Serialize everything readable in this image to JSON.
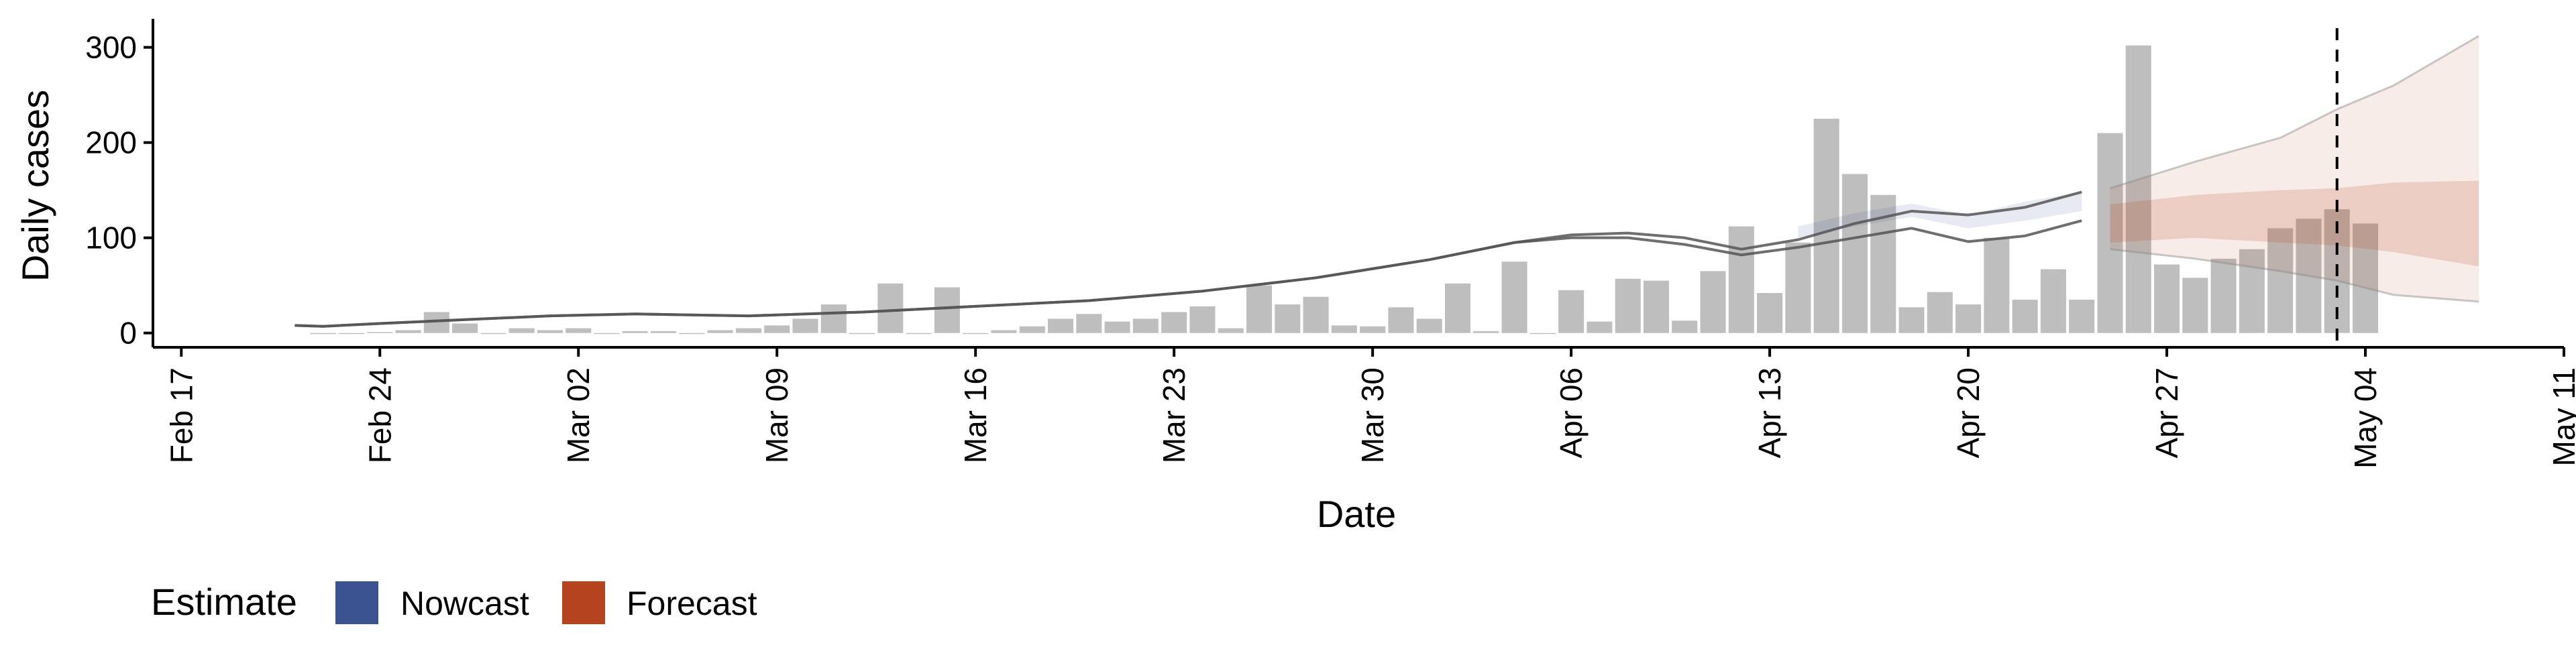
{
  "chart_data": {
    "type": "bar",
    "xlabel": "Date",
    "ylabel": "Daily cases",
    "ylim": [
      -15,
      330
    ],
    "xlim": [
      "2020-02-16",
      "2020-05-11"
    ],
    "y_ticks": [
      0,
      100,
      200,
      300
    ],
    "x_ticks": [
      {
        "date": "2020-02-17",
        "label": "Feb 17"
      },
      {
        "date": "2020-02-24",
        "label": "Feb 24"
      },
      {
        "date": "2020-03-02",
        "label": "Mar 02"
      },
      {
        "date": "2020-03-09",
        "label": "Mar 09"
      },
      {
        "date": "2020-03-16",
        "label": "Mar 16"
      },
      {
        "date": "2020-03-23",
        "label": "Mar 23"
      },
      {
        "date": "2020-03-30",
        "label": "Mar 30"
      },
      {
        "date": "2020-04-06",
        "label": "Apr 06"
      },
      {
        "date": "2020-04-13",
        "label": "Apr 13"
      },
      {
        "date": "2020-04-20",
        "label": "Apr 20"
      },
      {
        "date": "2020-04-27",
        "label": "Apr 27"
      },
      {
        "date": "2020-05-04",
        "label": "May 04"
      },
      {
        "date": "2020-05-11",
        "label": "May 11"
      }
    ],
    "reported_cases": {
      "start_date": "2020-02-22",
      "values": [
        0,
        0,
        1,
        3,
        22,
        10,
        0,
        5,
        3,
        5,
        0,
        2,
        2,
        0,
        3,
        5,
        8,
        15,
        30,
        0,
        52,
        0,
        48,
        0,
        3,
        7,
        15,
        20,
        12,
        15,
        22,
        28,
        5,
        50,
        30,
        38,
        8,
        7,
        27,
        15,
        52,
        2,
        75,
        0,
        45,
        12,
        57,
        55,
        13,
        65,
        112,
        42,
        95,
        225,
        167,
        145,
        27,
        43,
        30,
        100,
        35,
        67,
        35,
        210,
        302,
        72,
        58,
        78,
        88,
        110,
        120,
        130,
        115
      ]
    },
    "estimate_lines": [
      {
        "x": [
          "2020-02-21",
          "2020-02-22",
          "2020-02-24",
          "2020-02-27",
          "2020-03-01",
          "2020-03-04",
          "2020-03-08",
          "2020-03-12",
          "2020-03-16",
          "2020-03-20",
          "2020-03-24",
          "2020-03-28",
          "2020-04-01",
          "2020-04-04",
          "2020-04-06",
          "2020-04-08",
          "2020-04-10",
          "2020-04-12",
          "2020-04-14",
          "2020-04-16",
          "2020-04-18",
          "2020-04-20",
          "2020-04-22",
          "2020-04-24"
        ],
        "y": [
          8,
          7,
          10,
          14,
          18,
          20,
          18,
          22,
          28,
          34,
          44,
          58,
          77,
          95,
          103,
          105,
          100,
          88,
          98,
          115,
          128,
          124,
          132,
          148
        ]
      },
      {
        "x": [
          "2020-02-21",
          "2020-02-22",
          "2020-02-24",
          "2020-02-27",
          "2020-03-01",
          "2020-03-04",
          "2020-03-08",
          "2020-03-12",
          "2020-03-16",
          "2020-03-20",
          "2020-03-24",
          "2020-03-28",
          "2020-04-01",
          "2020-04-04",
          "2020-04-06",
          "2020-04-08",
          "2020-04-10",
          "2020-04-12",
          "2020-04-14",
          "2020-04-16",
          "2020-04-18",
          "2020-04-20",
          "2020-04-22",
          "2020-04-24"
        ],
        "y": [
          8,
          7,
          10,
          14,
          18,
          20,
          18,
          22,
          28,
          34,
          44,
          58,
          77,
          95,
          100,
          100,
          93,
          82,
          90,
          100,
          110,
          96,
          102,
          118
        ]
      }
    ],
    "nowcast": {
      "color": "#3C5391",
      "x": [
        "2020-04-14",
        "2020-04-16",
        "2020-04-18",
        "2020-04-20",
        "2020-04-22",
        "2020-04-24"
      ],
      "lower": [
        100,
        112,
        122,
        110,
        118,
        128
      ],
      "upper": [
        112,
        126,
        136,
        124,
        138,
        148
      ]
    },
    "forecast": {
      "color": "#B5441E",
      "x": [
        "2020-04-25",
        "2020-04-28",
        "2020-05-01",
        "2020-05-03",
        "2020-05-05",
        "2020-05-08"
      ],
      "outer_lower": [
        88,
        78,
        65,
        55,
        40,
        33
      ],
      "outer_upper": [
        152,
        180,
        205,
        235,
        260,
        312
      ],
      "mid_lower": [
        95,
        100,
        95,
        92,
        85,
        70
      ],
      "mid_upper": [
        135,
        145,
        150,
        152,
        158,
        160
      ]
    },
    "forecast_date": "2020-05-03",
    "legend": {
      "title": "Estimate",
      "position": "bottom-left",
      "items": [
        {
          "label": "Nowcast",
          "color": "#3C5391"
        },
        {
          "label": "Forecast",
          "color": "#B5441E"
        }
      ]
    },
    "grid": false
  }
}
